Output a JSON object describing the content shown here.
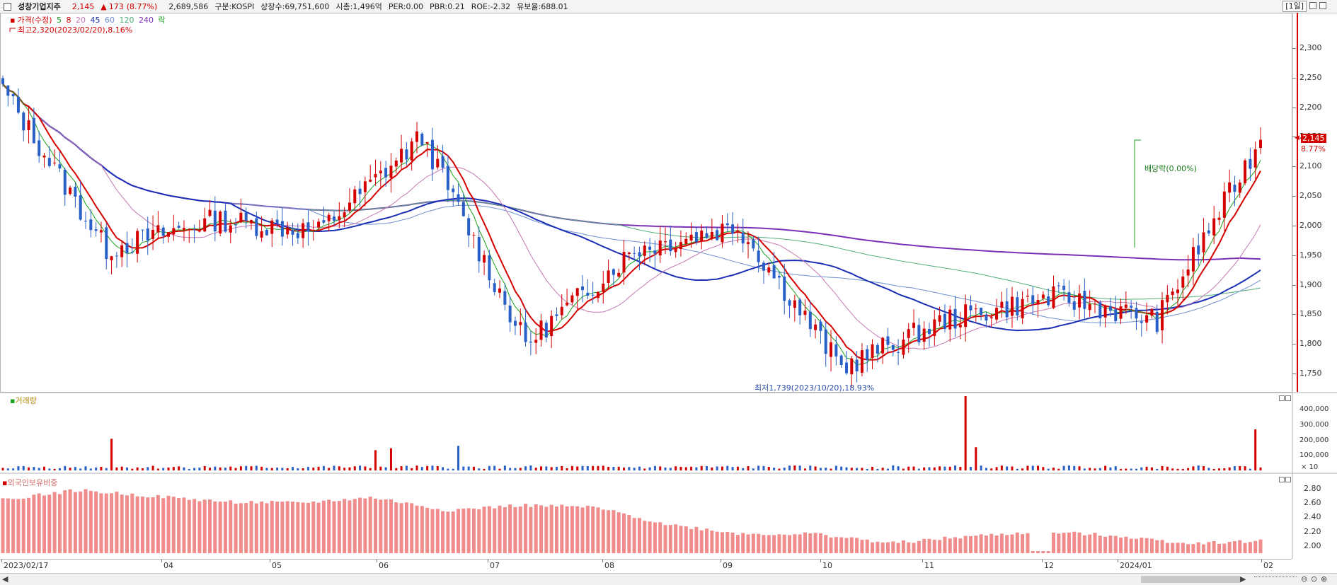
{
  "header": {
    "name": "성창기업지주",
    "price": "2,145",
    "change_arrow": "▲",
    "change": "173",
    "change_pct": "(8.77%)",
    "volume": "2,689,586",
    "market": "구분:KOSPI",
    "shares": "상장수:69,751,600",
    "market_cap": "시총:1,496억",
    "per": "PER:0.00",
    "pbr": "PBR:0.21",
    "roe": "ROE:-2.32",
    "float_ratio": "유보율:688.01",
    "period": "[1일]"
  },
  "legend": {
    "price_label": "가격(수정)",
    "ma": [
      {
        "label": "5",
        "color": "#1aa31a"
      },
      {
        "label": "8",
        "color": "#d40000"
      },
      {
        "label": "20",
        "color": "#c678b4"
      },
      {
        "label": "45",
        "color": "#1b2fb5"
      },
      {
        "label": "60",
        "color": "#6d8fd0"
      },
      {
        "label": "120",
        "color": "#4fae7a"
      },
      {
        "label": "240",
        "color": "#7a2fb8"
      }
    ],
    "extra_label": "락",
    "extra_color": "#1aa31a"
  },
  "annotations": {
    "high": "최고2,320(2023/02/20),8.16%",
    "low": "최저1,739(2023/10/20),18.93%",
    "dividend": "배당락(0.00%)"
  },
  "volume_panel": {
    "label": "거래량",
    "unit": "× 10",
    "ticks": [
      "400,000",
      "300,000",
      "200,000",
      "100,000"
    ]
  },
  "foreign_panel": {
    "label": "외국인보유비중",
    "ticks": [
      "2.80",
      "2.60",
      "2.40",
      "2.20",
      "2.00"
    ]
  },
  "price_axis": {
    "ticks": [
      "2,300",
      "2,250",
      "2,200",
      "2,150",
      "2,100",
      "2,050",
      "2,000",
      "1,950",
      "1,900",
      "1,850",
      "1,800",
      "1,750"
    ],
    "current": "2,145",
    "current_pct": "8.77%"
  },
  "x_axis": {
    "labels": [
      "2023/02/17",
      "04",
      "05",
      "06",
      "07",
      "08",
      "09",
      "10",
      "11",
      "12",
      "2024/01",
      "02"
    ]
  },
  "colors": {
    "up": "#d40000",
    "down": "#2860c8",
    "foreign_bar": "#f08c8c"
  },
  "chart_data": {
    "type": "candlestick",
    "ylim": [
      1720,
      2340
    ],
    "grid": false,
    "monthly_closes": [
      {
        "month": "2023/02",
        "close": 2230
      },
      {
        "month": "2023/03",
        "close": 1960
      },
      {
        "month": "2023/04",
        "close": 2010
      },
      {
        "month": "2023/05",
        "close": 1990
      },
      {
        "month": "2023/06",
        "close": 2150
      },
      {
        "month": "2023/07",
        "close": 1800
      },
      {
        "month": "2023/08",
        "close": 1960
      },
      {
        "month": "2023/09",
        "close": 2000
      },
      {
        "month": "2023/10",
        "close": 1760
      },
      {
        "month": "2023/11",
        "close": 1840
      },
      {
        "month": "2023/12",
        "close": 1880
      },
      {
        "month": "2024/01",
        "close": 1840
      },
      {
        "month": "2024/02",
        "close": 2145
      }
    ],
    "foreign_ownership": {
      "ylim": [
        1.9,
        2.95
      ],
      "values": [
        2.65,
        2.78,
        2.7,
        2.62,
        2.6,
        2.68,
        2.5,
        2.57,
        2.54,
        2.3,
        2.17,
        2.17,
        2.04,
        2.13,
        2.2,
        2.15,
        2.04,
        2.07
      ]
    }
  }
}
